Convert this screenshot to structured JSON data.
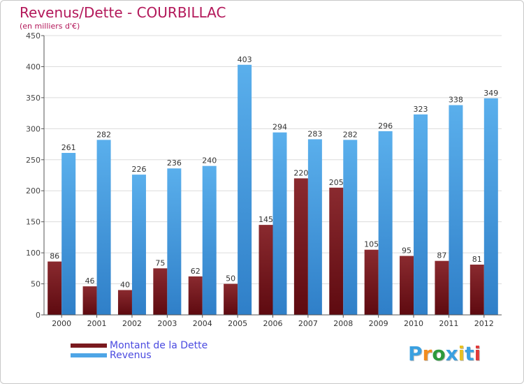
{
  "title": "Revenus/Dette - COURBILLAC",
  "subtitle": "(en milliers d'€)",
  "colors": {
    "title": "#b3185a",
    "dette": "#7a1a1f",
    "revenus": "#4ea5e6",
    "legend_text": "#4a4ae0"
  },
  "chart_data": {
    "type": "bar",
    "title": "Revenus/Dette - COURBILLAC",
    "ylabel": "(en milliers d'€)",
    "xlabel": "",
    "categories": [
      "2000",
      "2001",
      "2002",
      "2003",
      "2004",
      "2005",
      "2006",
      "2007",
      "2008",
      "2009",
      "2010",
      "2011",
      "2012"
    ],
    "series": [
      {
        "name": "Montant de la Dette",
        "values": [
          86,
          46,
          40,
          75,
          62,
          50,
          145,
          220,
          205,
          105,
          95,
          87,
          81
        ]
      },
      {
        "name": "Revenus",
        "values": [
          261,
          282,
          226,
          236,
          240,
          403,
          294,
          283,
          282,
          296,
          323,
          338,
          349
        ]
      }
    ],
    "ylim": [
      0,
      450
    ],
    "yticks": [
      0,
      50,
      100,
      150,
      200,
      250,
      300,
      350,
      400,
      450
    ],
    "grid": true,
    "legend": "bottom-left"
  },
  "legend": [
    {
      "label": "Montant de la Dette"
    },
    {
      "label": "Revenus"
    }
  ],
  "logo": {
    "letters": [
      "P",
      "r",
      "o",
      "x",
      "i",
      "t",
      "i"
    ],
    "colors": [
      "#3aa0e0",
      "#f28c1e",
      "#2c9a3c",
      "#3aa0e0",
      "#e8c020",
      "#3aa0e0",
      "#e03a3a"
    ]
  }
}
